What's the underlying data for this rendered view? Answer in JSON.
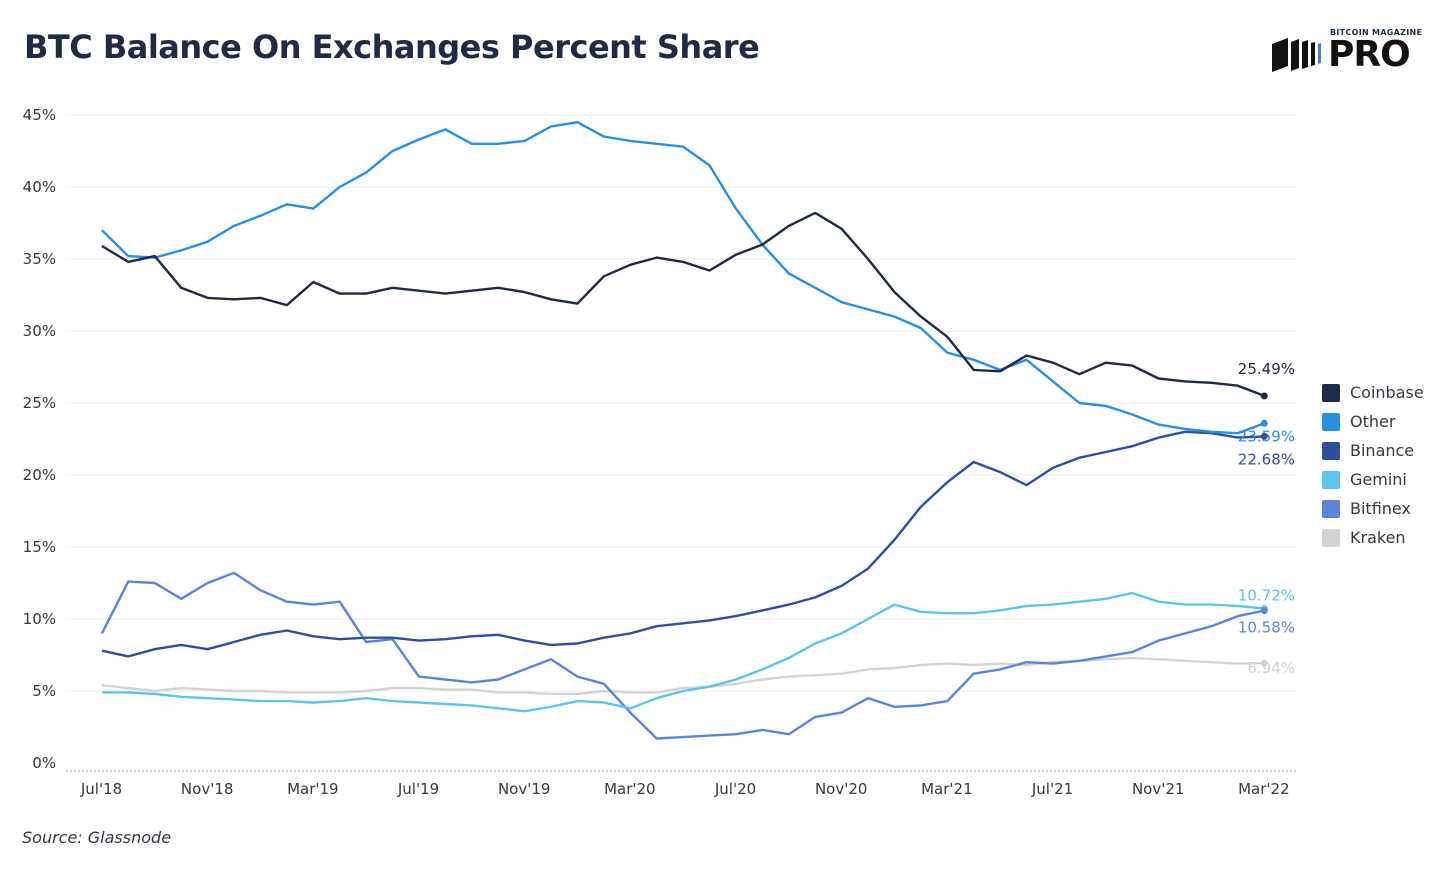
{
  "header": {
    "title": "BTC Balance On Exchanges Percent Share",
    "logo_top": "BITCOIN MAGAZINE",
    "logo_main": "PRO"
  },
  "source": "Source: Glassnode",
  "chart_data": {
    "type": "line",
    "title": "BTC Balance On Exchanges Percent Share",
    "xlabel": "",
    "ylabel": "",
    "ylim": [
      0,
      45
    ],
    "yticks": [
      "0%",
      "5%",
      "10%",
      "15%",
      "20%",
      "25%",
      "30%",
      "35%",
      "40%",
      "45%"
    ],
    "xlim": [
      "2018-07",
      "2022-05"
    ],
    "xticks": [
      "Jul'18",
      "Nov'18",
      "Mar'19",
      "Jul'19",
      "Nov'19",
      "Mar'20",
      "Jul'20",
      "Nov'20",
      "Mar'21",
      "Jul'21",
      "Nov'21",
      "Mar'22"
    ],
    "x": [
      "2018-08",
      "2018-09",
      "2018-10",
      "2018-11",
      "2018-12",
      "2019-01",
      "2019-02",
      "2019-03",
      "2019-04",
      "2019-05",
      "2019-06",
      "2019-07",
      "2019-08",
      "2019-09",
      "2019-10",
      "2019-11",
      "2019-12",
      "2020-01",
      "2020-02",
      "2020-03",
      "2020-04",
      "2020-05",
      "2020-06",
      "2020-07",
      "2020-08",
      "2020-09",
      "2020-10",
      "2020-11",
      "2020-12",
      "2021-01",
      "2021-02",
      "2021-03",
      "2021-04",
      "2021-05",
      "2021-06",
      "2021-07",
      "2021-08",
      "2021-09",
      "2021-10",
      "2021-11",
      "2021-12",
      "2022-01",
      "2022-02",
      "2022-03",
      "2022-04"
    ],
    "grid": true,
    "legend": "right",
    "series": [
      {
        "name": "Coinbase",
        "color": "#1f2a44",
        "end_label": "25.49%",
        "values": [
          35.9,
          34.8,
          35.2,
          33.0,
          32.3,
          32.2,
          32.3,
          31.8,
          33.4,
          32.6,
          32.6,
          33.0,
          32.8,
          32.6,
          32.8,
          33.0,
          32.7,
          32.2,
          31.9,
          33.8,
          34.6,
          35.1,
          34.8,
          34.2,
          35.3,
          36.0,
          37.3,
          38.2,
          37.1,
          35.0,
          32.7,
          31.0,
          29.6,
          27.3,
          27.2,
          28.3,
          27.8,
          27.0,
          27.8,
          27.6,
          26.7,
          26.5,
          26.4,
          26.2,
          25.49
        ]
      },
      {
        "name": "Other",
        "color": "#2b8fdf",
        "end_label": "23.59%",
        "values": [
          37.0,
          35.2,
          35.1,
          35.6,
          36.2,
          37.3,
          38.0,
          38.8,
          38.5,
          40.0,
          41.0,
          42.5,
          43.3,
          44.0,
          43.0,
          43.0,
          43.2,
          44.2,
          44.5,
          43.5,
          43.2,
          43.0,
          42.8,
          41.5,
          38.5,
          36.0,
          34.0,
          33.0,
          32.0,
          31.5,
          31.0,
          30.2,
          28.5,
          28.0,
          27.3,
          28.0,
          26.5,
          25.0,
          24.8,
          24.2,
          23.5,
          23.2,
          23.0,
          22.9,
          23.59
        ]
      },
      {
        "name": "Binance",
        "color": "#2e4f9c",
        "end_label": "22.68%",
        "values": [
          7.8,
          7.4,
          7.9,
          8.2,
          7.9,
          8.4,
          8.9,
          9.2,
          8.8,
          8.6,
          8.7,
          8.7,
          8.5,
          8.6,
          8.8,
          8.9,
          8.5,
          8.2,
          8.3,
          8.7,
          9.0,
          9.5,
          9.7,
          9.9,
          10.2,
          10.6,
          11.0,
          11.5,
          12.3,
          13.5,
          15.5,
          17.8,
          19.5,
          20.9,
          20.2,
          19.3,
          20.5,
          21.2,
          21.6,
          22.0,
          22.6,
          23.0,
          22.9,
          22.6,
          22.68
        ]
      },
      {
        "name": "Gemini",
        "color": "#5ec4e8",
        "end_label": "10.72%",
        "values": [
          4.9,
          4.9,
          4.8,
          4.6,
          4.5,
          4.4,
          4.3,
          4.3,
          4.2,
          4.3,
          4.5,
          4.3,
          4.2,
          4.1,
          4.0,
          3.8,
          3.6,
          3.9,
          4.3,
          4.2,
          3.8,
          4.5,
          5.0,
          5.3,
          5.8,
          6.5,
          7.3,
          8.3,
          9.0,
          10.0,
          11.0,
          10.5,
          10.4,
          10.4,
          10.6,
          10.9,
          11.0,
          11.2,
          11.4,
          11.8,
          11.2,
          11.0,
          11.0,
          10.9,
          10.72
        ]
      },
      {
        "name": "Bitfinex",
        "color": "#5b85d6",
        "end_label": "10.58%",
        "values": [
          9.0,
          12.6,
          12.5,
          11.4,
          12.5,
          13.2,
          12.0,
          11.2,
          11.0,
          11.2,
          8.4,
          8.6,
          6.0,
          5.8,
          5.6,
          5.8,
          6.5,
          7.2,
          6.0,
          5.5,
          3.5,
          1.7,
          1.8,
          1.9,
          2.0,
          2.3,
          2.0,
          3.2,
          3.5,
          4.5,
          3.9,
          4.0,
          4.3,
          6.2,
          6.5,
          7.0,
          6.9,
          7.1,
          7.4,
          7.7,
          8.5,
          9.0,
          9.5,
          10.2,
          10.58
        ]
      },
      {
        "name": "Kraken",
        "color": "#d3d3d3",
        "end_label": "6.94%",
        "values": [
          5.4,
          5.2,
          5.0,
          5.2,
          5.1,
          5.0,
          5.0,
          4.9,
          4.9,
          4.9,
          5.0,
          5.2,
          5.2,
          5.1,
          5.1,
          4.9,
          4.9,
          4.8,
          4.8,
          5.0,
          4.9,
          4.9,
          5.2,
          5.3,
          5.5,
          5.8,
          6.0,
          6.1,
          6.2,
          6.5,
          6.6,
          6.8,
          6.9,
          6.8,
          6.9,
          6.8,
          7.0,
          7.1,
          7.2,
          7.3,
          7.2,
          7.1,
          7.0,
          6.9,
          6.94
        ]
      }
    ]
  }
}
